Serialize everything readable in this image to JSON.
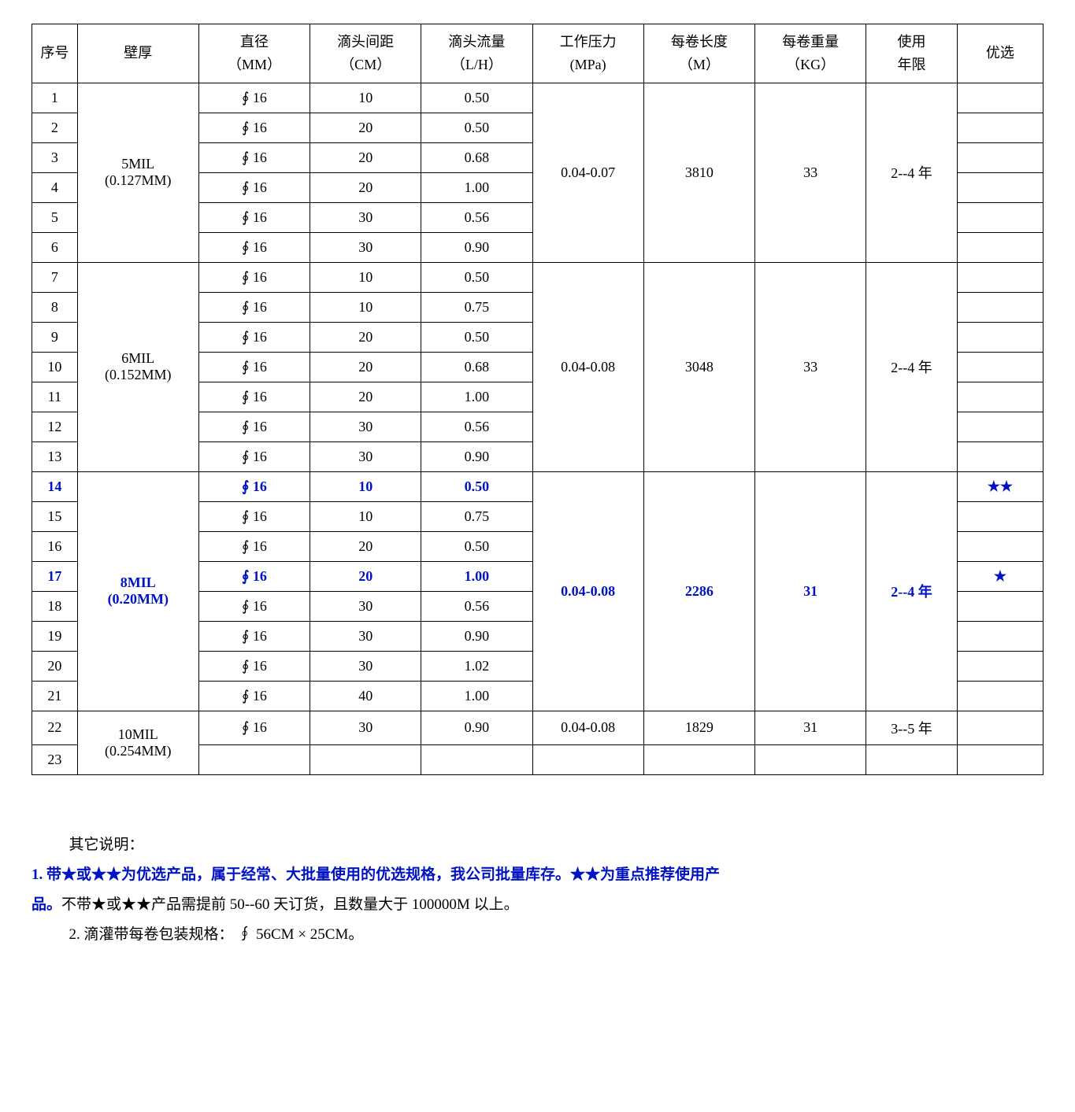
{
  "headers": {
    "seq": "序号",
    "wall": "壁厚",
    "diameter_l1": "直径",
    "diameter_l2": "（MM）",
    "spacing_l1": "滴头间距",
    "spacing_l2": "（CM）",
    "flow_l1": "滴头流量",
    "flow_l2": "（L/H）",
    "pressure_l1": "工作压力",
    "pressure_l2": "(MPa)",
    "length_l1": "每卷长度",
    "length_l2": "（M）",
    "weight_l1": "每卷重量",
    "weight_l2": "（KG）",
    "life_l1": "使用",
    "life_l2": "年限",
    "pref": "优选"
  },
  "groups": [
    {
      "wall_l1": "5MIL",
      "wall_l2": "(0.127MM)",
      "pressure": "0.04-0.07",
      "length": "3810",
      "weight": "33",
      "life": "2--4 年",
      "highlight_group": false,
      "rows": [
        {
          "seq": "1",
          "dia": "∮ 16",
          "spacing": "10",
          "flow": "0.50",
          "pref": "",
          "hl": false
        },
        {
          "seq": "2",
          "dia": "∮ 16",
          "spacing": "20",
          "flow": "0.50",
          "pref": "",
          "hl": false
        },
        {
          "seq": "3",
          "dia": "∮ 16",
          "spacing": "20",
          "flow": "0.68",
          "pref": "",
          "hl": false
        },
        {
          "seq": "4",
          "dia": "∮ 16",
          "spacing": "20",
          "flow": "1.00",
          "pref": "",
          "hl": false
        },
        {
          "seq": "5",
          "dia": "∮ 16",
          "spacing": "30",
          "flow": "0.56",
          "pref": "",
          "hl": false
        },
        {
          "seq": "6",
          "dia": "∮ 16",
          "spacing": "30",
          "flow": "0.90",
          "pref": "",
          "hl": false
        }
      ]
    },
    {
      "wall_l1": "6MIL",
      "wall_l2": "(0.152MM)",
      "pressure": "0.04-0.08",
      "length": "3048",
      "weight": "33",
      "life": "2--4 年",
      "highlight_group": false,
      "rows": [
        {
          "seq": "7",
          "dia": "∮ 16",
          "spacing": "10",
          "flow": "0.50",
          "pref": "",
          "hl": false
        },
        {
          "seq": "8",
          "dia": "∮ 16",
          "spacing": "10",
          "flow": "0.75",
          "pref": "",
          "hl": false
        },
        {
          "seq": "9",
          "dia": "∮ 16",
          "spacing": "20",
          "flow": "0.50",
          "pref": "",
          "hl": false
        },
        {
          "seq": "10",
          "dia": "∮ 16",
          "spacing": "20",
          "flow": "0.68",
          "pref": "",
          "hl": false
        },
        {
          "seq": "11",
          "dia": "∮ 16",
          "spacing": "20",
          "flow": "1.00",
          "pref": "",
          "hl": false
        },
        {
          "seq": "12",
          "dia": "∮ 16",
          "spacing": "30",
          "flow": "0.56",
          "pref": "",
          "hl": false
        },
        {
          "seq": "13",
          "dia": "∮ 16",
          "spacing": "30",
          "flow": "0.90",
          "pref": "",
          "hl": false
        }
      ]
    },
    {
      "wall_l1": "8MIL",
      "wall_l2": "(0.20MM)",
      "pressure": "0.04-0.08",
      "length": "2286",
      "weight": "31",
      "life": "2--4 年",
      "highlight_group": true,
      "rows": [
        {
          "seq": "14",
          "dia": "∮ 16",
          "spacing": "10",
          "flow": "0.50",
          "pref": "★★",
          "hl": true
        },
        {
          "seq": "15",
          "dia": "∮ 16",
          "spacing": "10",
          "flow": "0.75",
          "pref": "",
          "hl": false
        },
        {
          "seq": "16",
          "dia": "∮ 16",
          "spacing": "20",
          "flow": "0.50",
          "pref": "",
          "hl": false
        },
        {
          "seq": "17",
          "dia": "∮ 16",
          "spacing": "20",
          "flow": "1.00",
          "pref": "★",
          "hl": true
        },
        {
          "seq": "18",
          "dia": "∮ 16",
          "spacing": "30",
          "flow": "0.56",
          "pref": "",
          "hl": false
        },
        {
          "seq": "19",
          "dia": "∮ 16",
          "spacing": "30",
          "flow": "0.90",
          "pref": "",
          "hl": false
        },
        {
          "seq": "20",
          "dia": "∮ 16",
          "spacing": "30",
          "flow": "1.02",
          "pref": "",
          "hl": false
        },
        {
          "seq": "21",
          "dia": "∮ 16",
          "spacing": "40",
          "flow": "1.00",
          "pref": "",
          "hl": false
        }
      ]
    },
    {
      "wall_l1": "10MIL",
      "wall_l2": "(0.254MM)",
      "pressure": "0.04-0.08",
      "length": "1829",
      "weight": "31",
      "life": "3--5 年",
      "highlight_group": false,
      "span_only_first": true,
      "rows": [
        {
          "seq": "22",
          "dia": "∮ 16",
          "spacing": "30",
          "flow": "0.90",
          "pref": "",
          "hl": false
        },
        {
          "seq": "23",
          "dia": "",
          "spacing": "",
          "flow": "",
          "pref": "",
          "hl": false,
          "blank_tail": true
        }
      ]
    }
  ],
  "notes": {
    "title": "其它说明：",
    "n1a": "1. 带★或★★为优选产品，属于经常、大批量使用的优选规格，我公司批量库存。★★为重点推荐使用产",
    "n1b": "品。",
    "n1c": "不带★或★★产品需提前 50--60 天订货，且数量大于 100000M 以上。",
    "n2": "2. 滴灌带每卷包装规格： ∮ 56CM × 25CM。"
  }
}
